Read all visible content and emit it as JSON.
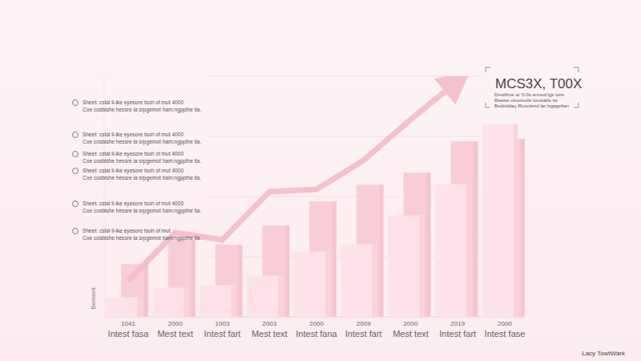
{
  "chart_data": {
    "type": "bar",
    "title": "MCS3X, T00X",
    "subtitle": "Dnsithne ot '0 0s enood lgs tore\nBewse oinoisotle loosiatle tw\nBedridday Rosolend lar bgpgellan",
    "y_label": "Bement",
    "footnote": "Lacy TowtWark",
    "annotations": [
      "Sheet: cstal ll-lke eyesore tsoh of mut 4000\nCoe cosbishe hessre ia srpgemot ham:ngpplhe lla.",
      "Sheet: cstal ll-lke eyesore tsoh of mut 4000\nCoe cosbishe hessre ia srpgemot ham:ngpplhe lla.",
      "Sheet: cstal ll-lke eyesore tsoh of mut 4000\nCoe cosbishe hessre ia srpgemot ham:ngpplhe lla.",
      "Sheet: cstal ll-lke eyesore tsoh of mut 4000\nCoe cosbishe hessre ia srpgemot ham:ngpplhe lla.",
      "Sheet: cstal ll-lke eyesore tsoh of mut 4000\nCoe cosbishe hessre ia srpgemot ham:ngpplhe lla.",
      "Sheet: cstal ll-lke eyesore tsoh of mut\nCoe cosbishe hessre ia srpgemot ham:ngpplhe lla."
    ],
    "categories": [
      "1041\nIntest fasa",
      "2000\nMest text",
      "1003\nIntest fart",
      "2003\nMest text",
      "2000\nIntest fana",
      "2009\nIntest fart",
      "2000\nMest text",
      "2019\nIntest fart",
      "2000\nIntest fase"
    ],
    "series": [
      {
        "type": "bar",
        "color": "#f8cdd7",
        "values": [
          22,
          32,
          30,
          38,
          48,
          55,
          60,
          73,
          74
        ]
      },
      {
        "type": "bar",
        "color": "#fde3e9",
        "values": [
          8,
          12,
          13,
          17,
          27,
          30,
          42,
          55,
          80
        ]
      },
      {
        "type": "line",
        "color": "#f6bccb",
        "line_style": "solid",
        "marker": "arrow",
        "values": [
          15,
          35,
          32,
          52,
          53,
          65,
          82,
          98,
          null
        ]
      }
    ],
    "ylim": [
      0,
      100
    ],
    "yticks": [
      0,
      25,
      50,
      75,
      100
    ],
    "grid": true,
    "tick_labels": "x"
  }
}
